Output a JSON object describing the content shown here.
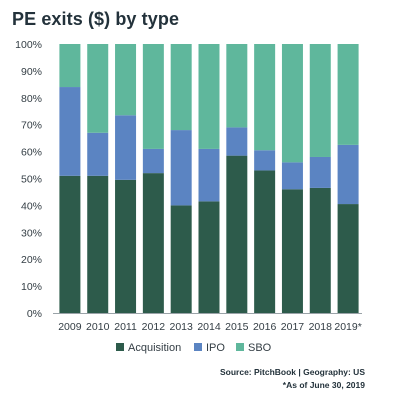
{
  "chart_data": {
    "type": "bar",
    "stacked": true,
    "title": "PE exits ($) by type",
    "categories": [
      "2009",
      "2010",
      "2011",
      "2012",
      "2013",
      "2014",
      "2015",
      "2016",
      "2017",
      "2018",
      "2019*"
    ],
    "series": [
      {
        "name": "Acquisition",
        "color": "#2d5b4b",
        "values": [
          51,
          51,
          49.5,
          52,
          40,
          41.5,
          58.5,
          53,
          46,
          46.5,
          40.5
        ]
      },
      {
        "name": "IPO",
        "color": "#5b84c2",
        "values": [
          33,
          16,
          24,
          9,
          28,
          19.5,
          10.5,
          7.5,
          10,
          11.5,
          22
        ]
      },
      {
        "name": "SBO",
        "color": "#5fb79c",
        "values": [
          16,
          33,
          26.5,
          39,
          32,
          39,
          31,
          39.5,
          44,
          42,
          37.5
        ]
      }
    ],
    "ylim": [
      0,
      100
    ],
    "yticks": [
      "0%",
      "10%",
      "20%",
      "30%",
      "40%",
      "50%",
      "60%",
      "70%",
      "80%",
      "90%",
      "100%"
    ],
    "grid": false,
    "legend_position": "bottom"
  },
  "source": {
    "line1": "Source: PitchBook | Geography: US",
    "line2": "*As of June 30, 2019"
  }
}
